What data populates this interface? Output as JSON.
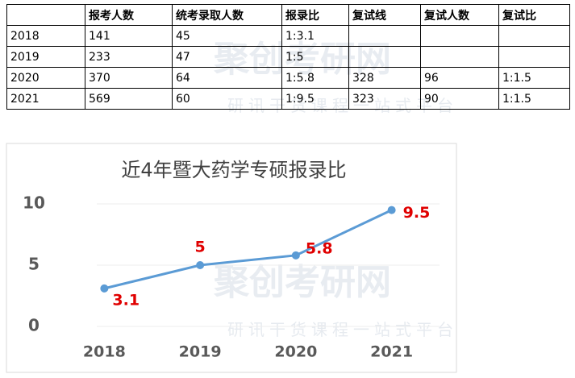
{
  "watermark": {
    "brand": "聚创考研网",
    "slogan": "研讯干货课程一站式平台"
  },
  "table": {
    "header": [
      null,
      "报考人数",
      "统考录取人数",
      "报录比",
      "复试线",
      "复试人数",
      "复试比"
    ],
    "rows": [
      [
        "2018",
        141,
        45,
        "1:3.1",
        null,
        null,
        null
      ],
      [
        "2019",
        233,
        47,
        "1:5",
        null,
        null,
        null
      ],
      [
        "2020",
        370,
        64,
        "1:5.8",
        328,
        96,
        "1:1.5"
      ],
      [
        "2021",
        569,
        60,
        "1:9.5",
        323,
        90,
        "1:1.5"
      ]
    ]
  },
  "chart_data": {
    "type": "line",
    "title": "近4年暨大药学专硕报录比",
    "categories": [
      "2018",
      "2019",
      "2020",
      "2021"
    ],
    "values": [
      3.1,
      5,
      5.8,
      9.5
    ],
    "color": "#5b9bd5",
    "label_color": "#e00000",
    "ylim": [
      0,
      10
    ],
    "yticks": [
      0,
      5,
      10
    ],
    "grid": true
  }
}
